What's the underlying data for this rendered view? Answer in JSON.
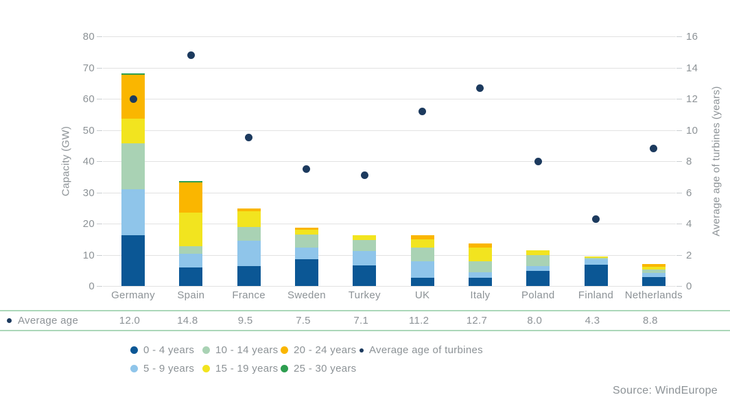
{
  "chart_data": {
    "type": "bar",
    "variant": "stacked-column-with-scatter-overlay",
    "title": "",
    "categories": [
      "Germany",
      "Spain",
      "France",
      "Sweden",
      "Turkey",
      "UK",
      "Italy",
      "Poland",
      "Finland",
      "Netherlands"
    ],
    "series": [
      {
        "name": "0 - 4 years",
        "color": "#0B5795",
        "values": [
          16.2,
          6.0,
          6.4,
          8.6,
          6.7,
          2.6,
          2.6,
          4.8,
          6.9,
          2.8
        ]
      },
      {
        "name": "5 - 9 years",
        "color": "#8FC5EA",
        "values": [
          14.8,
          4.3,
          8.0,
          3.8,
          4.4,
          5.3,
          1.8,
          1.5,
          1.6,
          1.4
        ]
      },
      {
        "name": "10 - 14 years",
        "color": "#A9D2B4",
        "values": [
          14.7,
          2.4,
          4.5,
          4.1,
          3.7,
          4.3,
          3.6,
          3.5,
          0.6,
          1.0
        ]
      },
      {
        "name": "15 - 19 years",
        "color": "#F2E41F",
        "values": [
          8.0,
          10.8,
          5.1,
          1.5,
          1.4,
          2.8,
          4.2,
          1.7,
          0.4,
          0.9
        ]
      },
      {
        "name": "20 - 24 years",
        "color": "#FAB600",
        "values": [
          14.0,
          9.7,
          0.8,
          0.7,
          0.0,
          1.2,
          1.5,
          0.0,
          0.0,
          0.9
        ]
      },
      {
        "name": "25 - 30 years",
        "color": "#2E9E50",
        "values": [
          0.5,
          0.4,
          0.0,
          0.0,
          0.0,
          0.0,
          0.0,
          0.0,
          0.0,
          0.0
        ]
      }
    ],
    "scatter": {
      "name": "Average age of turbines",
      "color": "#1C3A5E",
      "values": [
        12.0,
        14.8,
        9.5,
        7.5,
        7.1,
        11.2,
        12.7,
        8.0,
        4.3,
        8.8
      ]
    },
    "y_left": {
      "label": "Capacity (GW)",
      "min": 0,
      "max": 80,
      "ticks": [
        0,
        10,
        20,
        30,
        40,
        50,
        60,
        70,
        80
      ]
    },
    "y_right": {
      "label": "Average age of turbines (years)",
      "min": 0,
      "max": 16,
      "ticks": [
        0,
        2,
        4,
        6,
        8,
        10,
        12,
        14,
        16
      ]
    },
    "grid": true,
    "legend_position": "bottom"
  },
  "table": {
    "label": "Average age",
    "values": [
      "12.0",
      "14.8",
      "9.5",
      "7.5",
      "7.1",
      "11.2",
      "12.7",
      "8.0",
      "4.3",
      "8.8"
    ]
  },
  "source": "Source: WindEurope",
  "colors": {
    "grid": "#E2E2E2",
    "text": "#8C9296",
    "table_line": "#ABD7B9",
    "avg_dot": "#1C3A5E"
  }
}
